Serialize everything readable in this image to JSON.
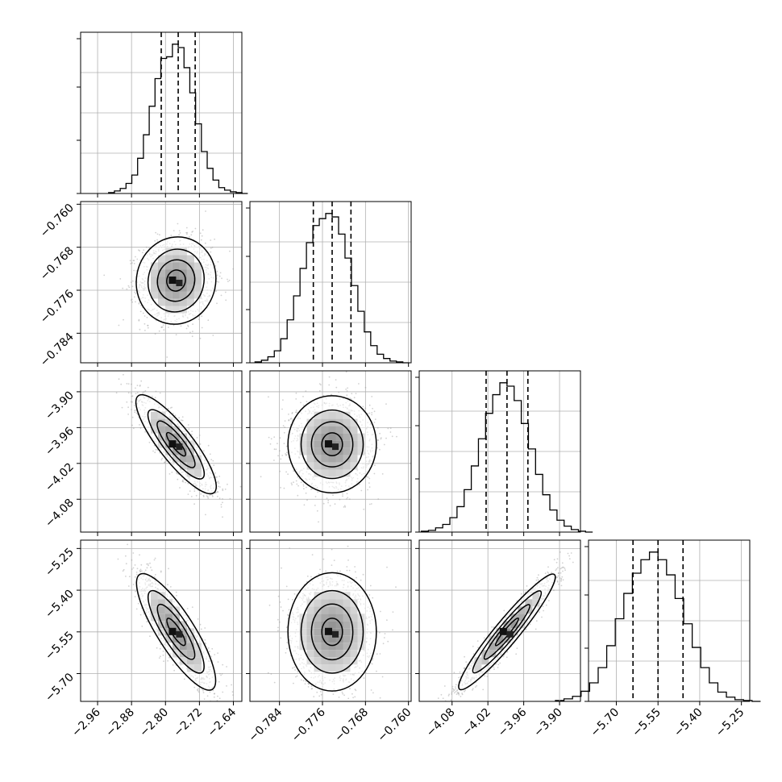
{
  "chart_data": {
    "type": "corner",
    "title": "",
    "grid": true,
    "colors": {
      "line": "#000000",
      "grid": "#b0b0b0",
      "hist2d_dark": "#000000",
      "scatter": "#9a9a9a"
    },
    "parameters": [
      {
        "range": [
          -3.0,
          -2.62
        ],
        "ticks": [
          -2.96,
          -2.88,
          -2.8,
          -2.72,
          -2.64
        ],
        "tick_labels": [
          "−2.96",
          "−2.88",
          "−2.80",
          "−2.72",
          "−2.64"
        ],
        "quantiles": [
          -2.81,
          -2.77,
          -2.73
        ],
        "hist_counts": [
          1,
          3,
          6,
          12,
          22,
          42,
          70,
          104,
          137,
          161,
          163,
          178,
          174,
          150,
          120,
          83,
          50,
          30,
          16,
          7,
          4,
          2,
          1,
          0
        ]
      },
      {
        "range": [
          -0.7895,
          -0.7595
        ],
        "ticks": [
          -0.784,
          -0.776,
          -0.768,
          -0.76
        ],
        "tick_labels": [
          "−0.784",
          "−0.776",
          "−0.768",
          "−0.760"
        ],
        "quantiles": [
          -0.7777,
          -0.7742,
          -0.7707
        ],
        "hist_counts": [
          1,
          3,
          7,
          14,
          28,
          50,
          78,
          110,
          140,
          160,
          168,
          174,
          170,
          150,
          122,
          90,
          60,
          36,
          20,
          10,
          5,
          2,
          1,
          0
        ]
      },
      {
        "range": [
          -4.135,
          -3.865
        ],
        "ticks": [
          -4.08,
          -4.02,
          -3.96,
          -3.9
        ],
        "tick_labels": [
          "−4.08",
          "−4.02",
          "−3.96",
          "−3.90"
        ],
        "quantiles": [
          -4.023,
          -3.988,
          -3.953
        ],
        "hist_counts": [
          1,
          2,
          5,
          9,
          17,
          30,
          50,
          78,
          110,
          140,
          162,
          176,
          172,
          155,
          128,
          98,
          68,
          44,
          26,
          14,
          7,
          3,
          1,
          0
        ]
      },
      {
        "range": [
          -5.8,
          -5.22
        ],
        "ticks": [
          -5.7,
          -5.55,
          -5.4,
          -5.25
        ],
        "tick_labels": [
          "−5.70",
          "−5.55",
          "−5.40",
          "−5.25"
        ],
        "quantiles": [
          -5.64,
          -5.55,
          -5.46
        ],
        "hist_counts": [
          1,
          3,
          6,
          12,
          22,
          40,
          66,
          98,
          128,
          152,
          168,
          177,
          168,
          150,
          122,
          92,
          64,
          40,
          22,
          11,
          5,
          2,
          1,
          0
        ]
      }
    ],
    "pairs": [
      {
        "row": 1,
        "col": 0,
        "center": [
          -2.775,
          -0.7742
        ],
        "sd": [
          0.04,
          0.0035
        ],
        "rho": 0.05
      },
      {
        "row": 2,
        "col": 0,
        "center": [
          -2.775,
          -3.988
        ],
        "sd": [
          0.04,
          0.035
        ],
        "rho": -0.85
      },
      {
        "row": 2,
        "col": 1,
        "center": [
          -0.7742,
          -3.988
        ],
        "sd": [
          0.0035,
          0.035
        ],
        "rho": 0.0
      },
      {
        "row": 3,
        "col": 0,
        "center": [
          -2.775,
          -5.55
        ],
        "sd": [
          0.04,
          0.09
        ],
        "rho": -0.84
      },
      {
        "row": 3,
        "col": 1,
        "center": [
          -0.7742,
          -5.55
        ],
        "sd": [
          0.0035,
          0.09
        ],
        "rho": 0.0
      },
      {
        "row": 3,
        "col": 2,
        "center": [
          -3.988,
          -5.55
        ],
        "sd": [
          0.035,
          0.09
        ],
        "rho": 0.95
      }
    ]
  }
}
